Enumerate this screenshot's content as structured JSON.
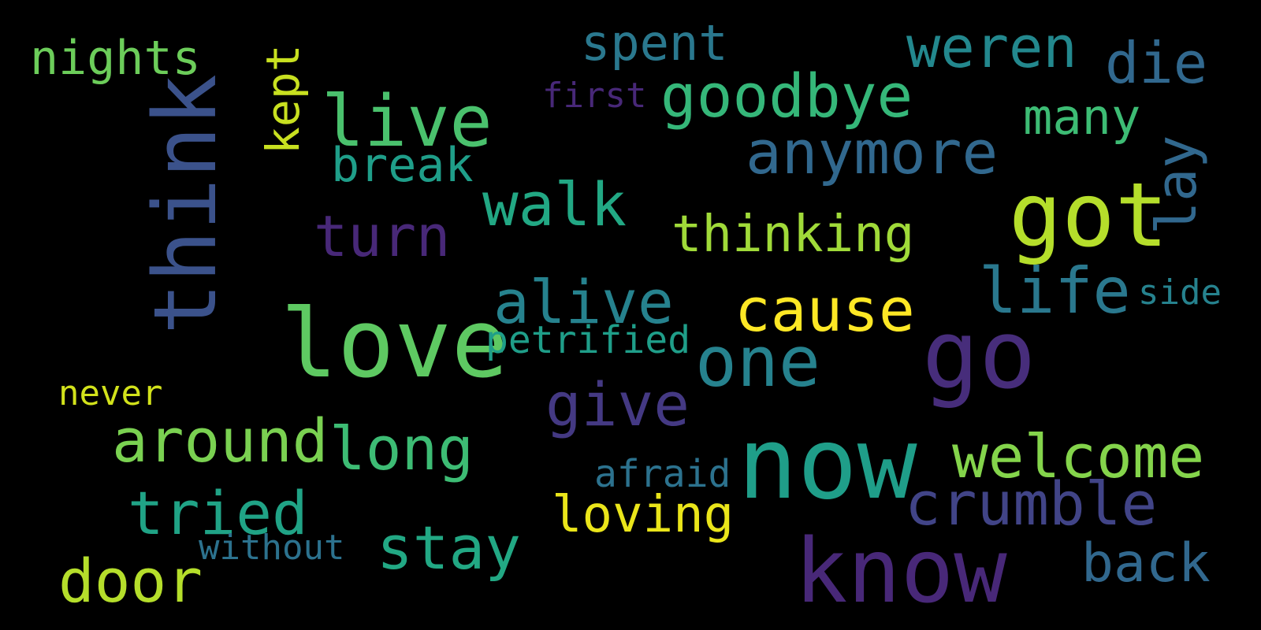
{
  "background": "#000000",
  "words": [
    {
      "text": "nights",
      "color": "#6ccd5a",
      "rotated": false
    },
    {
      "text": "kept",
      "color": "#c8e020",
      "rotated": true
    },
    {
      "text": "spent",
      "color": "#2a788e",
      "rotated": false
    },
    {
      "text": "weren",
      "color": "#23888e",
      "rotated": false
    },
    {
      "text": "die",
      "color": "#31688e",
      "rotated": false
    },
    {
      "text": "think",
      "color": "#3b528b",
      "rotated": true
    },
    {
      "text": "live",
      "color": "#4ac16d",
      "rotated": false
    },
    {
      "text": "first",
      "color": "#482878",
      "rotated": false
    },
    {
      "text": "goodbye",
      "color": "#35b779",
      "rotated": false
    },
    {
      "text": "many",
      "color": "#3dbc74",
      "rotated": false
    },
    {
      "text": "lay",
      "color": "#31688e",
      "rotated": true
    },
    {
      "text": "break",
      "color": "#1f9e89",
      "rotated": false
    },
    {
      "text": "anymore",
      "color": "#31688e",
      "rotated": false
    },
    {
      "text": "walk",
      "color": "#22a884",
      "rotated": false
    },
    {
      "text": "got",
      "color": "#b5de2b",
      "rotated": false
    },
    {
      "text": "turn",
      "color": "#482878",
      "rotated": false
    },
    {
      "text": "thinking",
      "color": "#a0da39",
      "rotated": false
    },
    {
      "text": "alive",
      "color": "#26828e",
      "rotated": false
    },
    {
      "text": "life",
      "color": "#2a788e",
      "rotated": false
    },
    {
      "text": "side",
      "color": "#26828e",
      "rotated": false
    },
    {
      "text": "cause",
      "color": "#fde725",
      "rotated": false
    },
    {
      "text": "love",
      "color": "#5ec962",
      "rotated": false
    },
    {
      "text": "petrified",
      "color": "#1f9e89",
      "rotated": false
    },
    {
      "text": "one",
      "color": "#26828e",
      "rotated": false
    },
    {
      "text": "go",
      "color": "#472d7b",
      "rotated": false
    },
    {
      "text": "never",
      "color": "#d2e21b",
      "rotated": false
    },
    {
      "text": "give",
      "color": "#443983",
      "rotated": false
    },
    {
      "text": "around",
      "color": "#7ad151",
      "rotated": false
    },
    {
      "text": "long",
      "color": "#3dbc74",
      "rotated": false
    },
    {
      "text": "now",
      "color": "#1f9e89",
      "rotated": false
    },
    {
      "text": "welcome",
      "color": "#84d44b",
      "rotated": false
    },
    {
      "text": "afraid",
      "color": "#2c728e",
      "rotated": false
    },
    {
      "text": "crumble",
      "color": "#414487",
      "rotated": false
    },
    {
      "text": "tried",
      "color": "#20a386",
      "rotated": false
    },
    {
      "text": "loving",
      "color": "#eae51a",
      "rotated": false
    },
    {
      "text": "without",
      "color": "#2c728e",
      "rotated": false
    },
    {
      "text": "stay",
      "color": "#22a884",
      "rotated": false
    },
    {
      "text": "know",
      "color": "#482878",
      "rotated": false
    },
    {
      "text": "door",
      "color": "#b5de2b",
      "rotated": false
    },
    {
      "text": "back",
      "color": "#31688e",
      "rotated": false
    }
  ]
}
